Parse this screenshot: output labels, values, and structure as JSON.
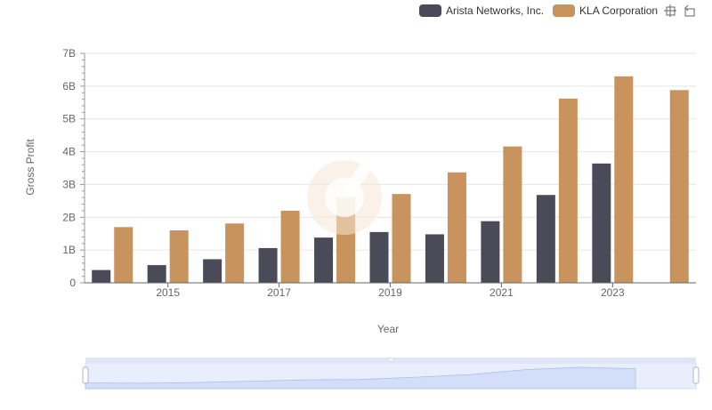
{
  "legend": {
    "items": [
      {
        "label": "Arista Networks, Inc.",
        "color": "#4a4a58"
      },
      {
        "label": "KLA Corporation",
        "color": "#c9935d"
      }
    ],
    "toolbox_icons": [
      "zoom-area-icon",
      "zoom-reset-icon"
    ]
  },
  "chart_data": {
    "type": "bar",
    "categories": [
      "2014",
      "2015",
      "2016",
      "2017",
      "2018",
      "2019",
      "2020",
      "2021",
      "2022",
      "2023",
      "2024"
    ],
    "x_tick_labels": [
      "2015",
      "2017",
      "2019",
      "2021",
      "2023"
    ],
    "y_tick_labels": [
      "0",
      "1B",
      "2B",
      "3B",
      "4B",
      "5B",
      "6B",
      "7B"
    ],
    "ylim": [
      0,
      7000000000
    ],
    "xlabel": "Year",
    "ylabel": "Gross Profit",
    "grid": true,
    "legend_position": "top-right",
    "series": [
      {
        "name": "Arista Networks, Inc.",
        "color": "#4a4a58",
        "values": [
          390000000,
          540000000,
          720000000,
          1060000000,
          1380000000,
          1550000000,
          1480000000,
          1880000000,
          2680000000,
          3640000000,
          null
        ]
      },
      {
        "name": "KLA Corporation",
        "color": "#c9935d",
        "values": [
          1700000000,
          1600000000,
          1810000000,
          2200000000,
          2600000000,
          2710000000,
          3370000000,
          4160000000,
          5620000000,
          6300000000,
          5880000000
        ]
      }
    ]
  },
  "data_zoom": {
    "start_percent": 0,
    "end_percent": 100
  }
}
